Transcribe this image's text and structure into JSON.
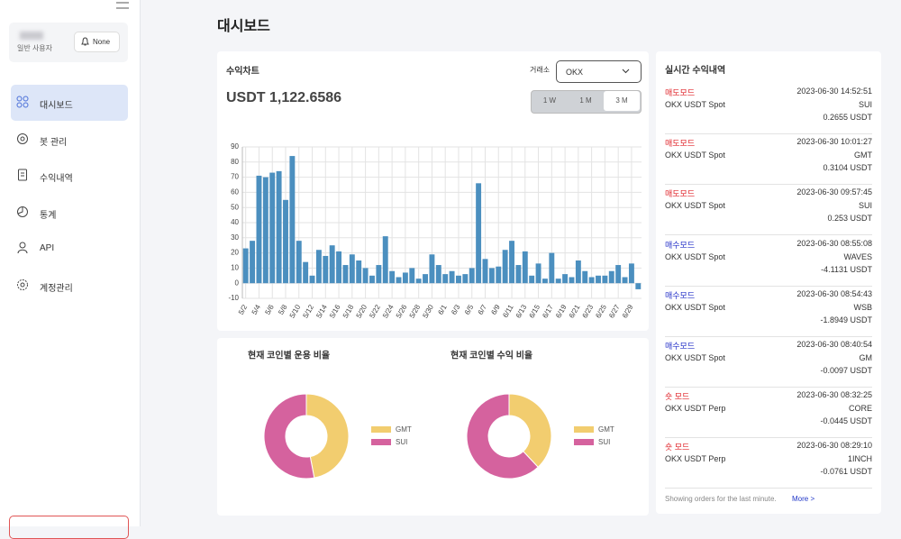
{
  "sidebar": {
    "user_role": "일반 사용자",
    "notification": "None",
    "menu": [
      "대시보드",
      "봇 관리",
      "수익내역",
      "통계",
      "API",
      "계정관리"
    ]
  },
  "header": {
    "title": "대시보드"
  },
  "profit_chart": {
    "title": "수익차트",
    "exchange_label": "거래소",
    "exchange": "OKX",
    "total": "USDT 1,122.6586",
    "periods": [
      "1 W",
      "1 M",
      "3 M"
    ]
  },
  "chart_data": [
    {
      "type": "bar",
      "color": "#4b8fbf",
      "grid": true,
      "categories": [
        "5/2",
        null,
        "5/4",
        null,
        "5/6",
        null,
        "5/8",
        null,
        "5/10",
        null,
        "5/12",
        null,
        "5/14",
        null,
        "5/16",
        null,
        "5/18",
        null,
        "5/20",
        null,
        "5/22",
        null,
        "5/24",
        null,
        "5/26",
        null,
        "5/28",
        null,
        "5/30",
        null,
        "6/1",
        null,
        "6/3",
        null,
        "6/5",
        null,
        "6/7",
        null,
        "6/9",
        null,
        "6/11",
        null,
        "6/13",
        null,
        "6/15",
        null,
        "6/17",
        null,
        "6/19",
        null,
        "6/21",
        null,
        "6/23",
        null,
        "6/25",
        null,
        "6/27",
        null,
        "6/29",
        null
      ],
      "values": [
        23,
        28,
        71,
        70,
        73,
        74,
        55,
        84,
        28,
        14,
        5,
        22,
        18,
        25,
        21,
        12,
        19,
        15,
        10,
        5,
        12,
        31,
        8,
        4,
        7,
        10,
        3,
        6,
        19,
        12,
        6,
        8,
        5,
        6,
        10,
        66,
        16,
        10,
        11,
        22,
        28,
        12,
        21,
        5,
        13,
        3,
        20,
        3,
        6,
        4,
        15,
        8,
        4,
        5,
        5,
        8,
        12,
        4,
        13,
        -4
      ],
      "ylim": [
        -10,
        90
      ],
      "yticks": [
        -10,
        0,
        10,
        20,
        30,
        40,
        50,
        60,
        70,
        80,
        90
      ]
    },
    {
      "type": "donut",
      "title": "현재 코인별 운용 비율",
      "categories": [
        "GMT",
        "SUI"
      ],
      "values": [
        47,
        53
      ],
      "colors": [
        "#f2cd6f",
        "#d5629e"
      ]
    },
    {
      "type": "donut",
      "title": "현재 코인별 수익 비율",
      "categories": [
        "GMT",
        "SUI"
      ],
      "values": [
        38,
        62
      ],
      "colors": [
        "#f2cd6f",
        "#d5629e"
      ]
    }
  ],
  "realtime": {
    "title": "실시간 수익내역",
    "orders": [
      {
        "mode": "매도모드",
        "color": "#e0252b",
        "time": "2023-06-30 14:52:51",
        "market": "OKX USDT Spot",
        "coin": "SUI",
        "amount": "0.2655 USDT"
      },
      {
        "mode": "매도모드",
        "color": "#e0252b",
        "time": "2023-06-30 10:01:27",
        "market": "OKX USDT Spot",
        "coin": "GMT",
        "amount": "0.3104 USDT"
      },
      {
        "mode": "매도모드",
        "color": "#e0252b",
        "time": "2023-06-30 09:57:45",
        "market": "OKX USDT Spot",
        "coin": "SUI",
        "amount": "0.253 USDT"
      },
      {
        "mode": "매수모드",
        "color": "#2531c8",
        "time": "2023-06-30 08:55:08",
        "market": "OKX USDT Spot",
        "coin": "WAVES",
        "amount": "-4.1131 USDT"
      },
      {
        "mode": "매수모드",
        "color": "#2531c8",
        "time": "2023-06-30 08:54:43",
        "market": "OKX USDT Spot",
        "coin": "WSB",
        "amount": "-1.8949 USDT"
      },
      {
        "mode": "매수모드",
        "color": "#2531c8",
        "time": "2023-06-30 08:40:54",
        "market": "OKX USDT Spot",
        "coin": "GM",
        "amount": "-0.0097 USDT"
      },
      {
        "mode": "숏 모드",
        "color": "#e0252b",
        "time": "2023-06-30 08:32:25",
        "market": "OKX USDT Perp",
        "coin": "CORE",
        "amount": "-0.0445 USDT"
      },
      {
        "mode": "숏 모드",
        "color": "#e0252b",
        "time": "2023-06-30 08:29:10",
        "market": "OKX USDT Perp",
        "coin": "1INCH",
        "amount": "-0.0761 USDT"
      }
    ],
    "footer": "Showing orders for the last minute.",
    "more": "More >"
  }
}
